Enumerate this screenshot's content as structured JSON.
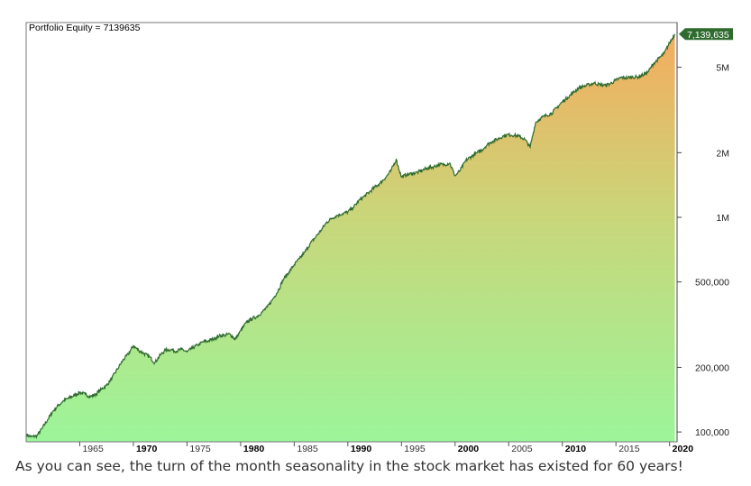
{
  "chart_data": {
    "type": "area",
    "title": "Portfolio Equity = 7139635",
    "last_value_label": "7,139,635",
    "y_scale": "log",
    "ylim": [
      90000,
      8000000
    ],
    "xlim": [
      1960,
      2020.7
    ],
    "y_ticks": [
      {
        "value": 100000,
        "label": "100,000"
      },
      {
        "value": 200000,
        "label": "200,000"
      },
      {
        "value": 500000,
        "label": "500,000"
      },
      {
        "value": 1000000,
        "label": "1M"
      },
      {
        "value": 2000000,
        "label": "2M"
      },
      {
        "value": 5000000,
        "label": "5M"
      }
    ],
    "x_ticks": [
      {
        "value": 1965,
        "label": "1965",
        "bold": false
      },
      {
        "value": 1970,
        "label": "1970",
        "bold": true
      },
      {
        "value": 1975,
        "label": "1975",
        "bold": false
      },
      {
        "value": 1980,
        "label": "1980",
        "bold": true
      },
      {
        "value": 1985,
        "label": "1985",
        "bold": false
      },
      {
        "value": 1990,
        "label": "1990",
        "bold": true
      },
      {
        "value": 1995,
        "label": "1995",
        "bold": false
      },
      {
        "value": 2000,
        "label": "2000",
        "bold": true
      },
      {
        "value": 2005,
        "label": "2005",
        "bold": false
      },
      {
        "value": 2010,
        "label": "2010",
        "bold": true
      },
      {
        "value": 2015,
        "label": "2015",
        "bold": false
      },
      {
        "value": 2020,
        "label": "2020",
        "bold": true
      }
    ],
    "grid": false,
    "colors": {
      "line": "#2f6b2f",
      "fill_bottom": "#9cf59a",
      "fill_top": "#f4ac5e",
      "badge": "#2f6b2f"
    },
    "series": [
      {
        "x": [
          1960.0,
          1960.5,
          1961.0,
          1961.5,
          1962.0,
          1962.5,
          1963.0,
          1963.5,
          1964.0,
          1964.5,
          1965.0,
          1965.5,
          1966.0,
          1966.5,
          1967.0,
          1967.5,
          1968.0,
          1968.5,
          1969.0,
          1969.5,
          1970.0,
          1970.5,
          1971.0,
          1971.5,
          1972.0,
          1972.5,
          1973.0,
          1973.5,
          1974.0,
          1974.5,
          1975.0,
          1975.5,
          1976.0,
          1976.5,
          1977.0,
          1977.5,
          1978.0,
          1978.5,
          1979.0,
          1979.5,
          1980.0,
          1980.5,
          1981.0,
          1981.5,
          1982.0,
          1982.5,
          1983.0,
          1983.5,
          1984.0,
          1984.5,
          1985.0,
          1985.5,
          1986.0,
          1986.5,
          1987.0,
          1987.5,
          1988.0,
          1988.5,
          1989.0,
          1989.5,
          1990.0,
          1990.5,
          1991.0,
          1991.5,
          1992.0,
          1992.5,
          1993.0,
          1993.5,
          1994.0,
          1994.5,
          1995.0,
          1995.5,
          1996.0,
          1996.5,
          1997.0,
          1997.5,
          1998.0,
          1998.5,
          1999.0,
          1999.5,
          2000.0,
          2000.5,
          2001.0,
          2001.5,
          2002.0,
          2002.5,
          2003.0,
          2003.5,
          2004.0,
          2004.5,
          2005.0,
          2005.5,
          2006.0,
          2006.5,
          2007.0,
          2007.5,
          2008.0,
          2008.5,
          2009.0,
          2009.5,
          2010.0,
          2010.5,
          2011.0,
          2011.5,
          2012.0,
          2012.5,
          2013.0,
          2013.5,
          2014.0,
          2014.5,
          2015.0,
          2015.5,
          2016.0,
          2016.5,
          2017.0,
          2017.5,
          2018.0,
          2018.5,
          2019.0,
          2019.5,
          2020.0,
          2020.5
        ],
        "values": [
          97000,
          95000,
          96000,
          104000,
          114000,
          125000,
          133000,
          140000,
          144000,
          148000,
          153000,
          150000,
          146000,
          150000,
          158000,
          165000,
          178000,
          196000,
          215000,
          230000,
          252000,
          240000,
          232000,
          224000,
          210000,
          228000,
          241000,
          242000,
          238000,
          243000,
          236000,
          246000,
          254000,
          263000,
          266000,
          272000,
          280000,
          282000,
          286000,
          270000,
          296000,
          322000,
          336000,
          344000,
          362000,
          382000,
          416000,
          455000,
          516000,
          555000,
          602000,
          642000,
          690000,
          755000,
          810000,
          870000,
          945000,
          990000,
          1020000,
          1040000,
          1060000,
          1110000,
          1190000,
          1250000,
          1310000,
          1380000,
          1440000,
          1530000,
          1640000,
          1860000,
          1540000,
          1580000,
          1600000,
          1620000,
          1660000,
          1700000,
          1720000,
          1760000,
          1760000,
          1790000,
          1560000,
          1660000,
          1840000,
          1920000,
          1990000,
          2060000,
          2180000,
          2260000,
          2320000,
          2390000,
          2430000,
          2410000,
          2380000,
          2310000,
          2120000,
          2760000,
          2900000,
          2980000,
          3050000,
          3250000,
          3450000,
          3620000,
          3800000,
          4000000,
          4080000,
          4150000,
          4220000,
          4150000,
          4120000,
          4200000,
          4350000,
          4480000,
          4460000,
          4500000,
          4500000,
          4600000,
          4760000,
          5200000,
          5500000,
          5800000,
          6500000,
          7139635
        ]
      }
    ]
  },
  "caption": "As you can see, the turn of the month seasonality in the stock market has existed for 60 years!"
}
